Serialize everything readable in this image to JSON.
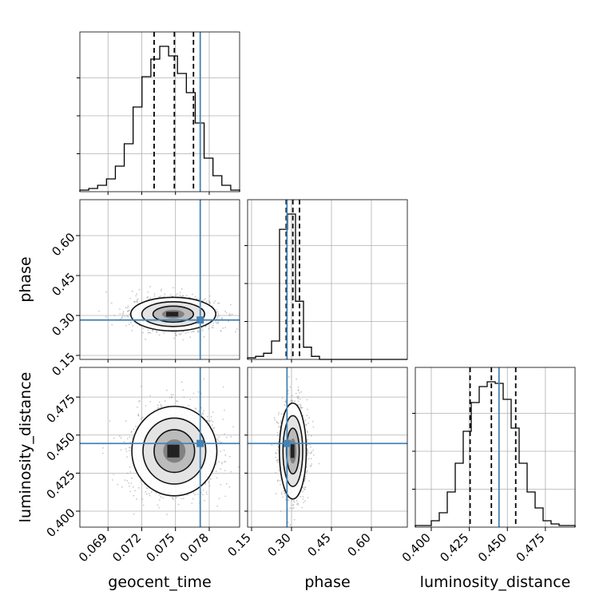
{
  "chart_data": {
    "type": "corner",
    "parameters": [
      "geocent_time",
      "phase",
      "luminosity_distance"
    ],
    "axis_labels": {
      "x": [
        "geocent_time",
        "phase",
        "luminosity_distance"
      ],
      "y": [
        "phase",
        "luminosity_distance"
      ]
    },
    "ranges": {
      "geocent_time": [
        0.0665,
        0.0807
      ],
      "phase": [
        0.135,
        0.735
      ],
      "luminosity_distance": [
        0.3895,
        0.4945
      ]
    },
    "ticks": {
      "geocent_time": [
        "0.069",
        "0.072",
        "0.075",
        "0.078"
      ],
      "phase": [
        "0.15",
        "0.30",
        "0.45",
        "0.60"
      ],
      "luminosity_distance": [
        "0.400",
        "0.425",
        "0.450",
        "0.475"
      ]
    },
    "truth": {
      "geocent_time": 0.0772,
      "phase": 0.283,
      "luminosity_distance": 0.4445
    },
    "quantiles": {
      "geocent_time": [
        0.0731,
        0.0749,
        0.0766
      ],
      "phase": [
        0.28,
        0.305,
        0.33
      ],
      "luminosity_distance": [
        0.4255,
        0.4395,
        0.4555
      ]
    },
    "histograms": {
      "geocent_time": [
        1,
        2,
        4,
        8,
        16,
        30,
        53,
        72,
        83,
        91,
        85,
        74,
        62,
        43,
        21,
        10,
        4,
        1
      ],
      "phase": [
        1,
        2,
        4,
        12,
        85,
        95,
        38,
        8,
        2,
        0,
        0,
        0,
        0,
        0,
        0,
        0,
        0,
        0,
        0,
        0
      ],
      "luminosity_distance": [
        1,
        1,
        4,
        9,
        22,
        40,
        60,
        78,
        88,
        91,
        90,
        80,
        62,
        40,
        22,
        12,
        4,
        2,
        1,
        1
      ]
    },
    "pair_means": {
      "geocent_time|phase": [
        0.0748,
        0.305
      ],
      "geocent_time|luminosity_distance": [
        0.0749,
        0.4395
      ],
      "phase|luminosity_distance": [
        0.305,
        0.4395
      ]
    },
    "pair_sigmas": {
      "geocent_time|phase": [
        0.0018,
        0.03
      ],
      "geocent_time|luminosity_distance": [
        0.0018,
        0.014
      ],
      "phase|luminosity_distance": [
        0.024,
        0.015
      ]
    },
    "grid": true,
    "colors": {
      "truth": "#4682b4",
      "hist": "#000000",
      "points": "#9a9a9a",
      "grid": "#b0b0b0"
    }
  }
}
